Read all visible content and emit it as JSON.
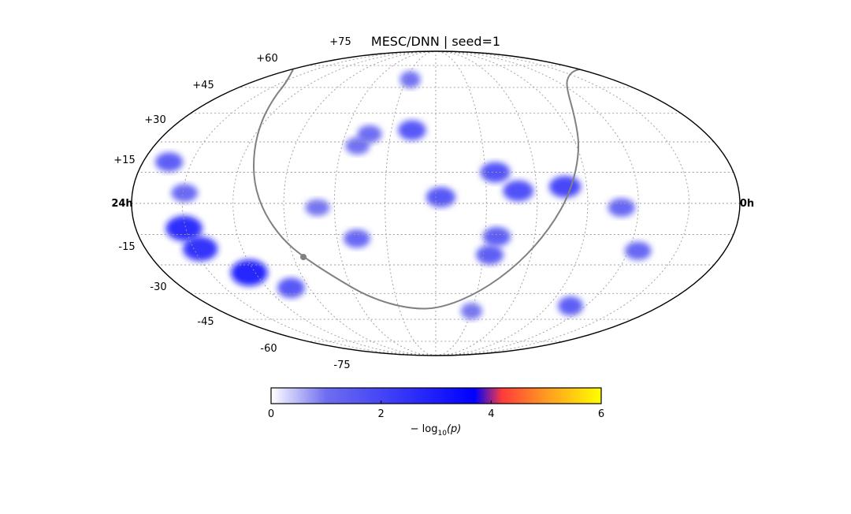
{
  "chart_data": {
    "type": "heatmap",
    "projection": "mollweide",
    "title": "MESC/DNN | seed=1",
    "ra_labels": [
      {
        "text": "24h",
        "ra_deg": 360
      },
      {
        "text": "0h",
        "ra_deg": 0
      }
    ],
    "dec_labels": [
      {
        "text": "+75",
        "dec": 75
      },
      {
        "text": "+60",
        "dec": 60
      },
      {
        "text": "+45",
        "dec": 45
      },
      {
        "text": "+30",
        "dec": 30
      },
      {
        "text": "+15",
        "dec": 15
      },
      {
        "text": "-15",
        "dec": -15
      },
      {
        "text": "-30",
        "dec": -30
      },
      {
        "text": "-45",
        "dec": -45
      },
      {
        "text": "-60",
        "dec": -60
      },
      {
        "text": "-75",
        "dec": -75
      }
    ],
    "grid": true,
    "colorbar": {
      "label": "− log10(p)",
      "label_main": "− log",
      "label_sub": "10",
      "label_arg": "(p)",
      "min": 0,
      "max": 6,
      "ticks": [
        0,
        2,
        4,
        6
      ],
      "tick_labels": [
        "0",
        "2",
        "4",
        "6"
      ],
      "colors": [
        "#ffffff",
        "#6e6ef0",
        "#0000ff",
        "#ff3b3b",
        "#ff9a20",
        "#ffff00"
      ]
    },
    "hotspots": [
      {
        "ra": 331,
        "dec": -12,
        "value": 3.2
      },
      {
        "ra": 326,
        "dec": -22,
        "value": 3.0
      },
      {
        "ra": 304,
        "dec": -34,
        "value": 3.5
      },
      {
        "ra": 283,
        "dec": -42,
        "value": 2.0
      },
      {
        "ra": 344,
        "dec": 20,
        "value": 1.8
      },
      {
        "ra": 329,
        "dec": 5,
        "value": 1.5
      },
      {
        "ra": 196,
        "dec": 36,
        "value": 2.0
      },
      {
        "ra": 177,
        "dec": 3,
        "value": 2.0
      },
      {
        "ra": 144,
        "dec": 15,
        "value": 2.1
      },
      {
        "ra": 131,
        "dec": 6,
        "value": 2.2
      },
      {
        "ra": 143,
        "dec": -16,
        "value": 1.8
      },
      {
        "ra": 146,
        "dec": -25,
        "value": 1.8
      },
      {
        "ra": 103,
        "dec": 8,
        "value": 2.4
      },
      {
        "ra": 70,
        "dec": -2,
        "value": 1.6
      },
      {
        "ra": 54,
        "dec": -23,
        "value": 1.6
      },
      {
        "ra": 72,
        "dec": -52,
        "value": 1.8
      },
      {
        "ra": 228,
        "dec": -17,
        "value": 1.6
      },
      {
        "ra": 224,
        "dec": 34,
        "value": 1.4
      },
      {
        "ra": 206,
        "dec": 65,
        "value": 1.3
      },
      {
        "ra": 150,
        "dec": -55,
        "value": 1.2
      },
      {
        "ra": 230,
        "dec": 28,
        "value": 1.3
      },
      {
        "ra": 250,
        "dec": -2,
        "value": 1.2
      }
    ],
    "trajectory": {
      "color": "#808080",
      "marker": {
        "ra": 263,
        "dec": -18
      }
    }
  }
}
